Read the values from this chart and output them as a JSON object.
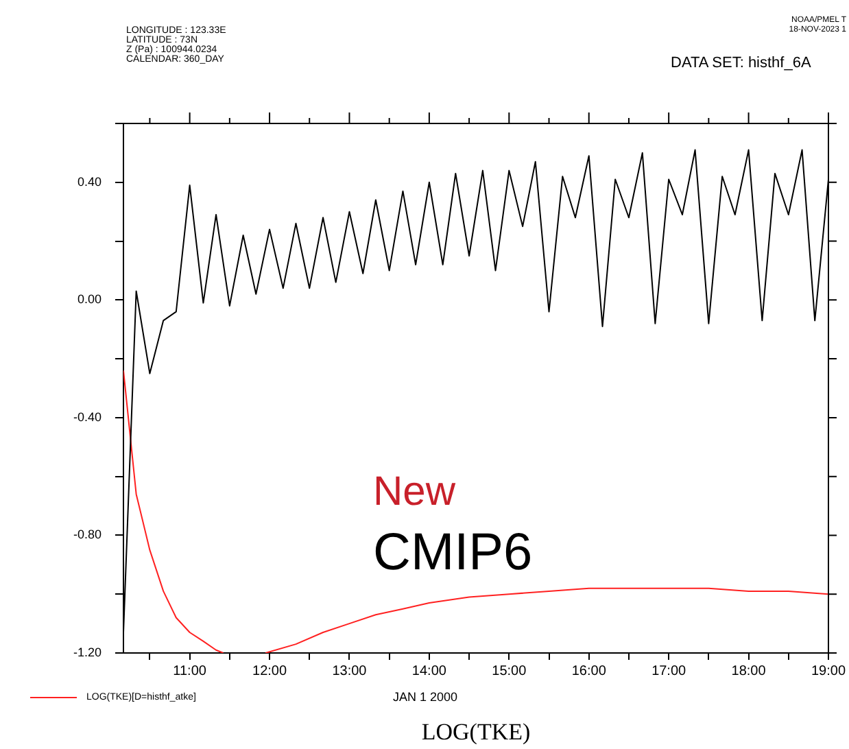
{
  "chart_data": {
    "type": "line",
    "title": "LOG(TKE)",
    "xlabel": "JAN  1 2000",
    "annotations": [
      "LONGITUDE : 123.33E",
      "LATITUDE : 73N",
      "Z (Pa) : 100944.0234",
      "CALENDAR: 360_DAY",
      "DATA SET: histhf_6A",
      "NOAA/PMEL T",
      "18-NOV-2023 1",
      "New",
      "CMIP6"
    ],
    "x": [
      10.17,
      10.33,
      10.5,
      10.67,
      10.83,
      11,
      11.17,
      11.33,
      11.5,
      11.67,
      11.83,
      12,
      12.17,
      12.33,
      12.5,
      12.67,
      12.83,
      13,
      13.17,
      13.33,
      13.5,
      13.67,
      13.83,
      14,
      14.17,
      14.33,
      14.5,
      14.67,
      14.83,
      15,
      15.17,
      15.33,
      15.5,
      15.67,
      15.83,
      16,
      16.17,
      16.33,
      16.5,
      16.67,
      16.83,
      17,
      17.17,
      17.33,
      17.5,
      17.67,
      17.83,
      18,
      18.17,
      18.33,
      18.5,
      18.67,
      18.83,
      19
    ],
    "series": [
      {
        "color": "#000000",
        "values": [
          -1.13,
          0.03,
          -0.25,
          -0.07,
          -0.04,
          0.39,
          -0.01,
          0.29,
          -0.02,
          0.22,
          0.02,
          0.24,
          0.04,
          0.26,
          0.04,
          0.28,
          0.06,
          0.3,
          0.09,
          0.34,
          0.1,
          0.37,
          0.12,
          0.4,
          0.12,
          0.43,
          0.15,
          0.44,
          0.1,
          0.44,
          0.25,
          0.47,
          -0.04,
          0.42,
          0.28,
          0.49,
          -0.09,
          0.41,
          0.28,
          0.5,
          -0.08,
          0.41,
          0.29,
          0.51,
          -0.08,
          0.42,
          0.29,
          0.51,
          -0.07,
          0.43,
          0.29,
          0.51,
          -0.07,
          0.41
        ]
      },
      {
        "name": "LOG(TKE)[D=histhf_atke]",
        "color": "#ff2020",
        "x": [
          10.17,
          10.33,
          10.5,
          10.67,
          10.83,
          11,
          11.17,
          11.33,
          11.42,
          11.7,
          11.95,
          12.33,
          12.67,
          13,
          13.33,
          13.67,
          14,
          14.5,
          15,
          15.5,
          16,
          16.5,
          17,
          17.5,
          18,
          18.5,
          19
        ],
        "values": [
          -0.24,
          -0.66,
          -0.85,
          -0.99,
          -1.08,
          -1.13,
          -1.16,
          -1.19,
          -1.2,
          null,
          -1.2,
          -1.17,
          -1.13,
          -1.1,
          -1.07,
          -1.05,
          -1.03,
          -1.01,
          -1.0,
          -0.99,
          -0.98,
          -0.98,
          -0.98,
          -0.98,
          -0.99,
          -0.99,
          -1.0
        ]
      }
    ],
    "xlim": [
      10.17,
      19
    ],
    "xticks": [
      {
        "value": 10.5,
        "label": null
      },
      {
        "value": 11,
        "label": "11:00"
      },
      {
        "value": 11.5,
        "label": null
      },
      {
        "value": 12,
        "label": "12:00"
      },
      {
        "value": 12.5,
        "label": null
      },
      {
        "value": 13,
        "label": "13:00"
      },
      {
        "value": 13.5,
        "label": null
      },
      {
        "value": 14,
        "label": "14:00"
      },
      {
        "value": 14.5,
        "label": null
      },
      {
        "value": 15,
        "label": "15:00"
      },
      {
        "value": 15.5,
        "label": null
      },
      {
        "value": 16,
        "label": "16:00"
      },
      {
        "value": 16.5,
        "label": null
      },
      {
        "value": 17,
        "label": "17:00"
      },
      {
        "value": 17.5,
        "label": null
      },
      {
        "value": 18,
        "label": "18:00"
      },
      {
        "value": 18.5,
        "label": null
      },
      {
        "value": 19,
        "label": "19:00"
      }
    ],
    "ylim": [
      -1.2,
      0.6
    ],
    "yticks": [
      {
        "value": -1.2,
        "label": "-1.20"
      },
      {
        "value": -1,
        "label": null
      },
      {
        "value": -0.8,
        "label": "-0.80"
      },
      {
        "value": -0.6,
        "label": null
      },
      {
        "value": -0.4,
        "label": "-0.40"
      },
      {
        "value": -0.2,
        "label": null
      },
      {
        "value": 0,
        "label": "0.00"
      },
      {
        "value": 0.2,
        "label": null
      },
      {
        "value": 0.4,
        "label": "0.40"
      },
      {
        "value": 0.6,
        "label": null
      }
    ],
    "grid": false,
    "legend": "bottom left"
  }
}
